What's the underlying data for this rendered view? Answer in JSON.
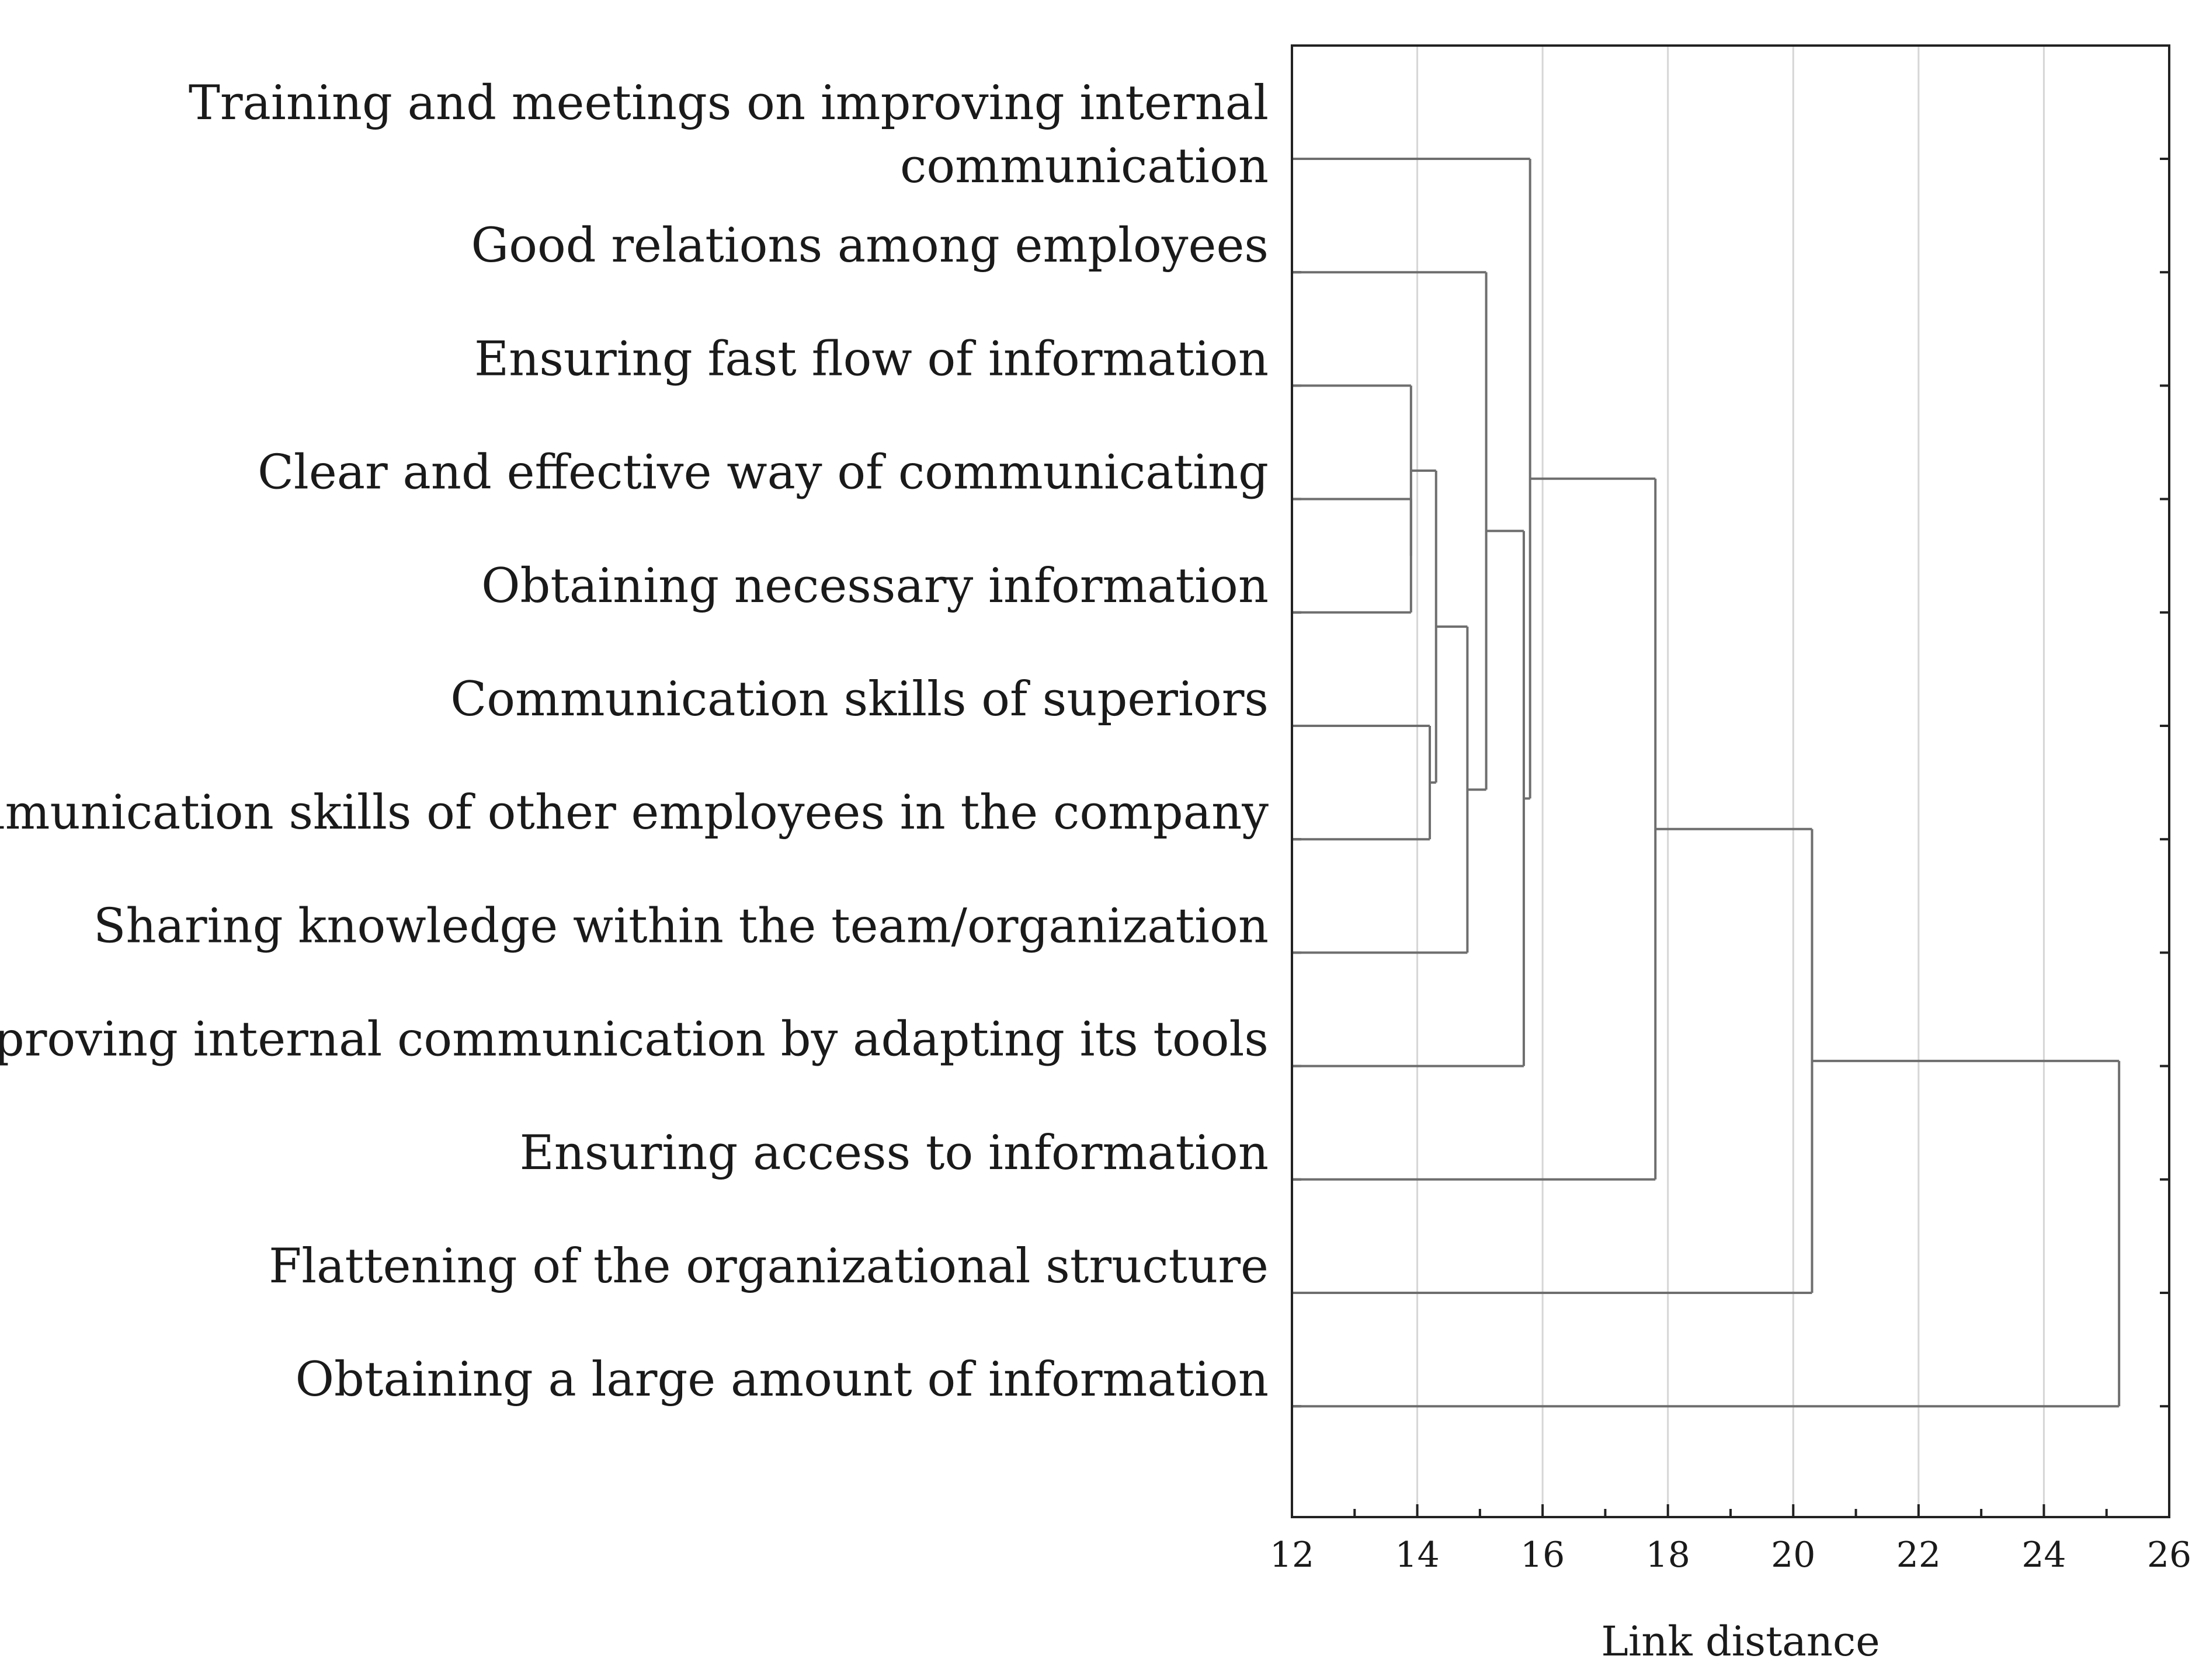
{
  "chart_data": {
    "type": "dendrogram",
    "orientation": "horizontal",
    "xlabel": "Link distance",
    "xlim": [
      12,
      26
    ],
    "xticks": [
      12,
      14,
      16,
      18,
      20,
      22,
      24,
      26
    ],
    "grid": true,
    "leaves": [
      {
        "id": "L1",
        "label_lines": [
          "Training and meetings on improving internal",
          "communication"
        ]
      },
      {
        "id": "L2",
        "label_lines": [
          "Good relations among employees"
        ]
      },
      {
        "id": "L3",
        "label_lines": [
          "Ensuring fast flow of information"
        ]
      },
      {
        "id": "L4",
        "label_lines": [
          "Clear and effective way of communicating"
        ]
      },
      {
        "id": "L5",
        "label_lines": [
          "Obtaining necessary information"
        ]
      },
      {
        "id": "L6",
        "label_lines": [
          "Communication skills of superiors"
        ]
      },
      {
        "id": "L7",
        "label_lines": [
          "Communication skills of other employees in the company"
        ]
      },
      {
        "id": "L8",
        "label_lines": [
          "Sharing knowledge within the team/organization"
        ]
      },
      {
        "id": "L9",
        "label_lines": [
          "Improving internal communication by adapting its tools"
        ]
      },
      {
        "id": "L10",
        "label_lines": [
          "Ensuring access to information"
        ]
      },
      {
        "id": "L11",
        "label_lines": [
          "Flattening of the organizational structure"
        ]
      },
      {
        "id": "L12",
        "label_lines": [
          "Obtaining a large amount of information"
        ]
      }
    ],
    "merges": [
      {
        "id": "C1",
        "children": [
          "L4",
          "L5"
        ],
        "distance": 13.9
      },
      {
        "id": "C2",
        "children": [
          "L3",
          "C1"
        ],
        "distance": 13.9
      },
      {
        "id": "C3",
        "children": [
          "L6",
          "L7"
        ],
        "distance": 14.2
      },
      {
        "id": "C4",
        "children": [
          "C2",
          "C3"
        ],
        "distance": 14.3
      },
      {
        "id": "C5",
        "children": [
          "C4",
          "L8"
        ],
        "distance": 14.8
      },
      {
        "id": "C6",
        "children": [
          "L2",
          "C5"
        ],
        "distance": 15.1
      },
      {
        "id": "C7",
        "children": [
          "C6",
          "L9"
        ],
        "distance": 15.7
      },
      {
        "id": "C8",
        "children": [
          "L1",
          "C7"
        ],
        "distance": 15.8
      },
      {
        "id": "C9",
        "children": [
          "C8",
          "L10"
        ],
        "distance": 17.8
      },
      {
        "id": "C10",
        "children": [
          "C9",
          "L11"
        ],
        "distance": 20.3
      },
      {
        "id": "C11",
        "children": [
          "C10",
          "L12"
        ],
        "distance": 25.2
      }
    ]
  }
}
